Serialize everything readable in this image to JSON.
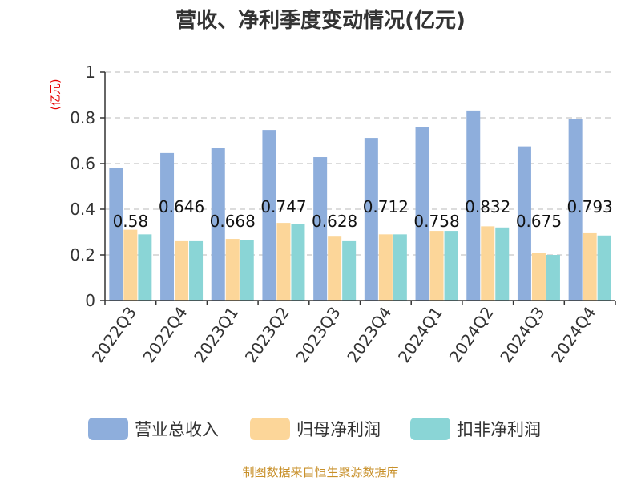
{
  "title": "营收、净利季度变动情况(亿元)",
  "unit_label": "(亿元)",
  "source": "制图数据来自恒生聚源数据库",
  "colors": {
    "revenue": "#8eaedc",
    "net_profit": "#fcd699",
    "deducted_profit": "#8ad5d6",
    "grid": "#c8c8c8",
    "axis": "#333333"
  },
  "chart_data": {
    "type": "bar",
    "categories": [
      "2022Q3",
      "2022Q4",
      "2023Q1",
      "2023Q2",
      "2023Q3",
      "2023Q4",
      "2024Q1",
      "2024Q2",
      "2024Q3",
      "2024Q4"
    ],
    "series": [
      {
        "name": "营业总收入",
        "values": [
          0.58,
          0.646,
          0.668,
          0.747,
          0.628,
          0.712,
          0.758,
          0.832,
          0.675,
          0.793
        ]
      },
      {
        "name": "归母净利润",
        "values": [
          0.31,
          0.26,
          0.27,
          0.34,
          0.28,
          0.29,
          0.305,
          0.325,
          0.21,
          0.295
        ]
      },
      {
        "name": "扣非净利润",
        "values": [
          0.29,
          0.26,
          0.265,
          0.335,
          0.26,
          0.29,
          0.305,
          0.32,
          0.2,
          0.285
        ]
      }
    ],
    "data_labels": [
      "0.58",
      "0.646",
      "0.668",
      "0.747",
      "0.628",
      "0.712",
      "0.758",
      "0.832",
      "0.675",
      "0.793"
    ],
    "yticks": [
      "0",
      "0.2",
      "0.4",
      "0.6",
      "0.8",
      "1"
    ],
    "ylim": [
      0,
      1
    ],
    "grid": true,
    "legend_position": "bottom"
  }
}
